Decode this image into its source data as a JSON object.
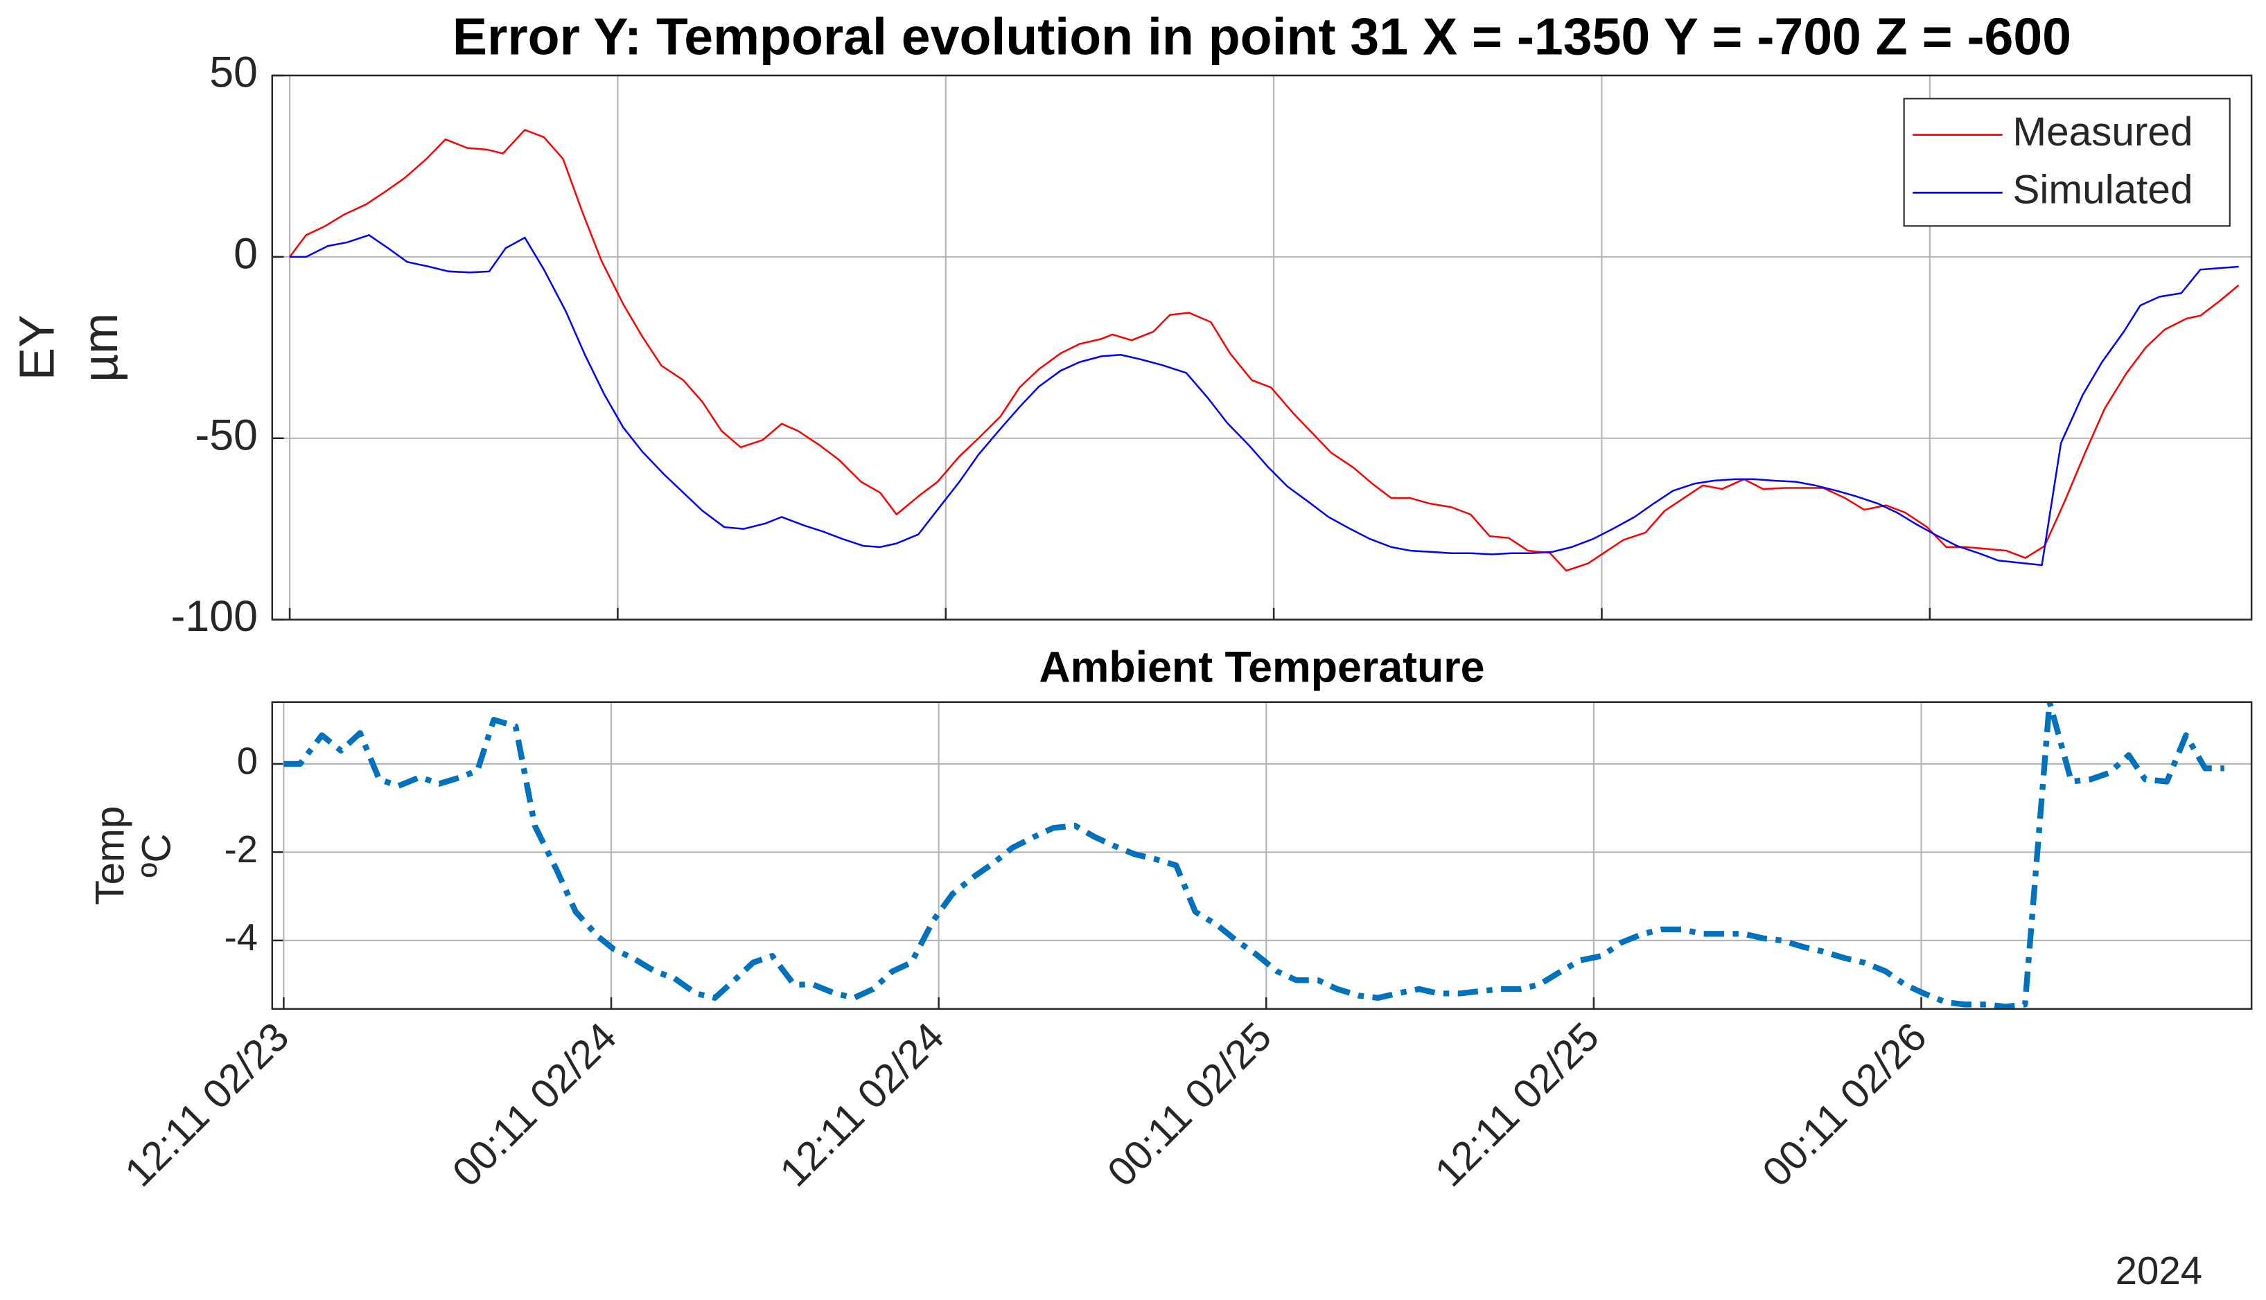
{
  "chart_data": [
    {
      "type": "line",
      "title": "Error Y: Temporal evolution in point 31 X = -1350 Y = -700 Z = -600",
      "ylabel": [
        "EY",
        "µm"
      ],
      "xlim": [
        -0.64,
        71.77
      ],
      "xticks": [
        0,
        12,
        24,
        36,
        48,
        60
      ],
      "ylim": [
        -100,
        50
      ],
      "yticks": [
        -100,
        -50,
        0,
        50
      ],
      "grid": true,
      "legend": "upper right",
      "series": [
        {
          "name": "Measured",
          "color": "#ff0000",
          "x": [
            0,
            0.6,
            1.3,
            2.0,
            2.8,
            3.5,
            4.2,
            5.0,
            5.7,
            6.5,
            7.2,
            7.8,
            8.6,
            9.3,
            10.0,
            10.7,
            11.4,
            12.2,
            12.9,
            13.6,
            14.4,
            15.1,
            15.8,
            16.5,
            17.3,
            18.0,
            18.6,
            19.4,
            20.1,
            20.9,
            21.6,
            22.2,
            23.0,
            23.7,
            24.5,
            25.2,
            26.0,
            26.7,
            27.4,
            28.2,
            28.9,
            29.7,
            30.1,
            30.8,
            31.6,
            32.2,
            32.9,
            33.7,
            34.4,
            35.2,
            35.9,
            36.7,
            37.4,
            38.1,
            38.9,
            39.6,
            40.3,
            41.0,
            41.7,
            42.5,
            43.2,
            43.9,
            44.6,
            45.3,
            46.1,
            46.7,
            47.5,
            48.2,
            48.8,
            49.6,
            50.3,
            51.1,
            51.7,
            52.4,
            53.2,
            53.9,
            54.7,
            55.4,
            56.1,
            56.9,
            57.6,
            58.4,
            59.1,
            59.9,
            60.6,
            61.3,
            62.1,
            62.8,
            63.5,
            64.2,
            64.9,
            65.7,
            66.4,
            67.2,
            67.9,
            68.6,
            69.4,
            69.9,
            70.6,
            71.3
          ],
          "values": [
            0,
            6,
            8.5,
            11.7,
            14.5,
            18,
            21.7,
            27,
            32.4,
            30,
            29.6,
            28.5,
            35,
            33,
            27,
            12.5,
            -1,
            -13,
            -22,
            -30,
            -34,
            -40,
            -48,
            -52.5,
            -50.5,
            -46,
            -48,
            -52,
            -56,
            -62,
            -65,
            -71,
            -66,
            -62,
            -55,
            -50,
            -44,
            -36,
            -31,
            -26.6,
            -24,
            -22.6,
            -21.4,
            -23,
            -20.6,
            -16,
            -15.4,
            -18,
            -26.6,
            -34,
            -36,
            -43,
            -48.5,
            -54,
            -58,
            -62.5,
            -66.5,
            -66.5,
            -68,
            -69,
            -71,
            -77,
            -77.5,
            -81,
            -81.6,
            -86.5,
            -84.5,
            -81,
            -78,
            -76,
            -70,
            -66,
            -63,
            -64,
            -61.3,
            -64,
            -63.7,
            -63.7,
            -63.7,
            -66.5,
            -69.7,
            -68.5,
            -70.5,
            -74.5,
            -80,
            -80,
            -80.5,
            -81,
            -83,
            -79.7,
            -68,
            -53.7,
            -41.8,
            -32,
            -25,
            -20,
            -17,
            -16.2,
            -12.2,
            -7.8
          ]
        },
        {
          "name": "Simulated",
          "color": "#0000ff",
          "x": [
            0,
            0.6,
            1.4,
            2.1,
            2.9,
            3.6,
            4.3,
            5.1,
            5.8,
            6.6,
            7.3,
            7.9,
            8.6,
            9.3,
            10.1,
            10.8,
            11.5,
            12.2,
            12.9,
            13.7,
            14.4,
            15.1,
            15.9,
            16.6,
            17.4,
            18.0,
            18.8,
            19.5,
            20.2,
            21.0,
            21.6,
            22.2,
            23.0,
            23.7,
            24.5,
            25.2,
            26.0,
            26.7,
            27.4,
            28.2,
            28.9,
            29.7,
            30.4,
            31.1,
            31.9,
            32.8,
            33.6,
            34.3,
            35.1,
            35.8,
            36.5,
            37.3,
            38.0,
            38.8,
            39.5,
            40.3,
            41.0,
            41.7,
            42.5,
            43.2,
            44.0,
            44.7,
            45.4,
            46.2,
            46.9,
            47.7,
            48.4,
            49.2,
            49.9,
            50.6,
            51.4,
            52.1,
            52.9,
            53.6,
            54.3,
            55.1,
            55.8,
            56.6,
            57.3,
            58.1,
            58.8,
            59.5,
            60.3,
            61.0,
            61.8,
            62.5,
            64.1,
            64.8,
            65.6,
            66.3,
            67.1,
            67.7,
            68.4,
            69.2,
            69.9,
            71.3
          ],
          "values": [
            0,
            0,
            3,
            4,
            6,
            2.4,
            -1.4,
            -2.7,
            -4,
            -4.3,
            -4,
            2.4,
            5.3,
            -3.5,
            -15,
            -27,
            -37.8,
            -47,
            -53.7,
            -60,
            -65,
            -70,
            -74.5,
            -75,
            -73.5,
            -71.7,
            -74,
            -75.7,
            -77.7,
            -79.7,
            -80,
            -79,
            -76.5,
            -69.7,
            -62,
            -54.5,
            -47.4,
            -41.4,
            -35.8,
            -31.4,
            -29,
            -27.4,
            -27,
            -28.2,
            -29.8,
            -32,
            -39,
            -45.8,
            -52,
            -58,
            -63.3,
            -67.7,
            -71.7,
            -75,
            -77.7,
            -80,
            -81,
            -81.3,
            -81.7,
            -81.7,
            -82,
            -81.7,
            -81.7,
            -81.3,
            -80,
            -77.7,
            -75,
            -71.7,
            -68,
            -64.5,
            -62.5,
            -61.7,
            -61.3,
            -61.3,
            -61.7,
            -62,
            -63,
            -64.5,
            -66,
            -68,
            -70.5,
            -73.7,
            -77,
            -79.7,
            -81.7,
            -83.7,
            -85,
            -51.3,
            -38,
            -29,
            -20.6,
            -13.4,
            -11,
            -10,
            -3.5,
            -2.7
          ]
        }
      ]
    },
    {
      "type": "line",
      "title": "Ambient Temperature",
      "ylabel": [
        "Temp",
        "ºC"
      ],
      "xlabel": "2024",
      "xlim": [
        -0.42,
        72.1
      ],
      "xticks": [
        {
          "value": 0,
          "label": "12:11 02/23"
        },
        {
          "value": 12,
          "label": "00:11 02/24"
        },
        {
          "value": 24,
          "label": "12:11 02/24"
        },
        {
          "value": 36,
          "label": "00:11 02/25"
        },
        {
          "value": 48,
          "label": "12:11 02/25"
        },
        {
          "value": 60,
          "label": "00:11 02/26"
        }
      ],
      "ylim": [
        -5.55,
        1.4
      ],
      "yticks": [
        -4,
        -2,
        0
      ],
      "grid": true,
      "series": [
        {
          "color": "#0072bd",
          "linestyle": "dashdot",
          "x": [
            0.0,
            0.6,
            1.4,
            2.1,
            2.8,
            3.5,
            4.2,
            5.0,
            5.7,
            6.5,
            7.1,
            7.7,
            8.5,
            9.2,
            10.0,
            10.7,
            11.5,
            12.1,
            12.8,
            13.6,
            14.3,
            15.1,
            15.8,
            16.6,
            17.2,
            17.9,
            18.7,
            19.4,
            20.2,
            20.9,
            21.6,
            22.3,
            23.0,
            23.8,
            24.5,
            25.3,
            26.0,
            26.7,
            27.5,
            28.2,
            29.0,
            29.7,
            30.4,
            31.2,
            31.9,
            32.7,
            33.4,
            34.2,
            34.9,
            35.6,
            36.4,
            37.1,
            37.9,
            38.6,
            39.4,
            40.1,
            40.8,
            41.6,
            42.3,
            43.1,
            43.8,
            44.6,
            45.3,
            46.0,
            46.8,
            47.5,
            48.3,
            49.0,
            49.8,
            50.5,
            51.2,
            52.0,
            52.7,
            53.5,
            54.2,
            54.9,
            55.7,
            56.4,
            57.2,
            57.9,
            58.7,
            59.4,
            60.1,
            60.9,
            61.6,
            62.4,
            63.1,
            63.8,
            64.7,
            65.5,
            66.2,
            66.9,
            67.6,
            68.2,
            69.0,
            69.7,
            70.4,
            71.1
          ],
          "values": [
            0,
            0,
            0.65,
            0.3,
            0.7,
            -0.35,
            -0.5,
            -0.3,
            -0.45,
            -0.3,
            -0.15,
            1.0,
            0.85,
            -1.4,
            -2.4,
            -3.35,
            -3.9,
            -4.2,
            -4.4,
            -4.7,
            -4.85,
            -5.2,
            -5.3,
            -4.85,
            -4.5,
            -4.35,
            -5.0,
            -5.0,
            -5.2,
            -5.3,
            -5.1,
            -4.7,
            -4.5,
            -3.55,
            -2.95,
            -2.55,
            -2.25,
            -1.9,
            -1.65,
            -1.45,
            -1.4,
            -1.65,
            -1.85,
            -2.05,
            -2.15,
            -2.3,
            -3.35,
            -3.65,
            -4.0,
            -4.3,
            -4.7,
            -4.9,
            -4.9,
            -5.1,
            -5.25,
            -5.3,
            -5.2,
            -5.1,
            -5.2,
            -5.2,
            -5.15,
            -5.1,
            -5.1,
            -5.0,
            -4.7,
            -4.45,
            -4.35,
            -4.05,
            -3.85,
            -3.75,
            -3.75,
            -3.85,
            -3.85,
            -3.85,
            -3.95,
            -4.0,
            -4.15,
            -4.25,
            -4.4,
            -4.5,
            -4.7,
            -5.0,
            -5.2,
            -5.4,
            -5.45,
            -5.45,
            -5.5,
            -5.45,
            1.4,
            -0.4,
            -0.35,
            -0.2,
            0.2,
            -0.35,
            -0.4,
            0.65,
            -0.1,
            -0.1
          ]
        }
      ]
    }
  ]
}
